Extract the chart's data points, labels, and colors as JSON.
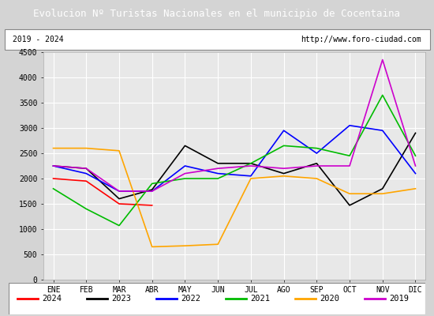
{
  "title": "Evolucion Nº Turistas Nacionales en el municipio de Cocentaina",
  "subtitle_left": "2019 - 2024",
  "subtitle_right": "http://www.foro-ciudad.com",
  "months": [
    "ENE",
    "FEB",
    "MAR",
    "ABR",
    "MAY",
    "JUN",
    "JUL",
    "AGO",
    "SEP",
    "OCT",
    "NOV",
    "DIC"
  ],
  "series": {
    "2024": [
      2000,
      1950,
      1500,
      1470,
      null,
      null,
      null,
      null,
      null,
      null,
      null,
      null
    ],
    "2023": [
      2250,
      2200,
      1600,
      1780,
      2650,
      2300,
      2300,
      2100,
      2300,
      1470,
      1800,
      2900
    ],
    "2022": [
      2250,
      2100,
      1750,
      1750,
      2250,
      2100,
      2050,
      2950,
      2500,
      3050,
      2950,
      2100
    ],
    "2021": [
      1800,
      1400,
      1070,
      1900,
      2000,
      2000,
      2300,
      2650,
      2600,
      2450,
      3650,
      2450
    ],
    "2020": [
      2600,
      2600,
      2550,
      650,
      670,
      700,
      2000,
      2050,
      2000,
      1700,
      1700,
      1800
    ],
    "2019": [
      2250,
      2200,
      1750,
      1750,
      2100,
      2200,
      2250,
      2200,
      2250,
      2250,
      4350,
      2250
    ]
  },
  "colors": {
    "2024": "#ff0000",
    "2023": "#000000",
    "2022": "#0000ff",
    "2021": "#00bb00",
    "2020": "#ffa500",
    "2019": "#cc00cc"
  },
  "ylim": [
    0,
    4500
  ],
  "yticks": [
    0,
    500,
    1000,
    1500,
    2000,
    2500,
    3000,
    3500,
    4000,
    4500
  ],
  "bg_color": "#d4d4d4",
  "title_bg": "#4a7fc0",
  "plot_bg": "#e8e8e8",
  "grid_color": "#ffffff",
  "title_color": "#ffffff",
  "title_fontsize": 9,
  "tick_fontsize": 7,
  "legend_fontsize": 7.5
}
